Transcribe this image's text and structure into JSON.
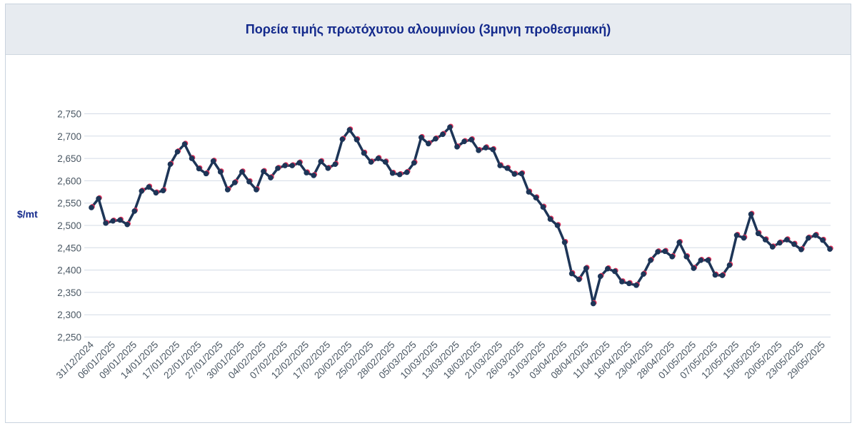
{
  "chart_data": {
    "type": "line",
    "title": "Πορεία τιμής πρωτόχυτου αλουμινίου (3μηνη προθεσμιακή)",
    "ylabel": "$/mt",
    "xlabel": "",
    "ylim": [
      2250,
      2750
    ],
    "yticks": [
      "2,250",
      "2,300",
      "2,350",
      "2,400",
      "2,450",
      "2,500",
      "2,550",
      "2,600",
      "2,650",
      "2,700",
      "2,750"
    ],
    "ytick_values": [
      2250,
      2300,
      2350,
      2400,
      2450,
      2500,
      2550,
      2600,
      2650,
      2700,
      2750
    ],
    "xtick_labels": [
      "31/12/2024",
      "06/01/2025",
      "09/01/2025",
      "14/01/2025",
      "17/01/2025",
      "22/01/2025",
      "27/01/2025",
      "30/01/2025",
      "04/02/2025",
      "07/02/2025",
      "12/02/2025",
      "17/02/2025",
      "20/02/2025",
      "25/02/2025",
      "28/02/2025",
      "05/03/2025",
      "10/03/2025",
      "13/03/2025",
      "18/03/2025",
      "21/03/2025",
      "26/03/2025",
      "31/03/2025",
      "03/04/2025",
      "08/04/2025",
      "11/04/2025",
      "16/04/2025",
      "23/04/2025",
      "28/04/2025",
      "01/05/2025",
      "07/05/2025",
      "12/05/2025",
      "15/05/2025",
      "20/05/2025",
      "23/05/2025",
      "29/05/2025"
    ],
    "grid": true,
    "legend": "none",
    "series": [
      {
        "color": "#1d3557",
        "marker_accent": "#e0315a",
        "values": [
          2540,
          2560,
          2505,
          2510,
          2512,
          2502,
          2532,
          2577,
          2586,
          2573,
          2578,
          2637,
          2665,
          2682,
          2650,
          2627,
          2616,
          2644,
          2620,
          2580,
          2596,
          2620,
          2598,
          2580,
          2621,
          2607,
          2628,
          2634,
          2634,
          2640,
          2618,
          2612,
          2643,
          2628,
          2637,
          2693,
          2714,
          2692,
          2662,
          2642,
          2650,
          2642,
          2617,
          2614,
          2619,
          2640,
          2697,
          2683,
          2694,
          2704,
          2720,
          2676,
          2688,
          2692,
          2668,
          2674,
          2670,
          2634,
          2628,
          2615,
          2616,
          2575,
          2562,
          2541,
          2514,
          2500,
          2462,
          2392,
          2379,
          2404,
          2325,
          2386,
          2403,
          2397,
          2374,
          2370,
          2366,
          2391,
          2422,
          2441,
          2442,
          2430,
          2462,
          2430,
          2404,
          2422,
          2422,
          2389,
          2388,
          2411,
          2478,
          2472,
          2525,
          2482,
          2468,
          2452,
          2461,
          2468,
          2458,
          2446,
          2472,
          2478,
          2467,
          2447
        ]
      }
    ]
  },
  "colors": {
    "title": "#142a8c",
    "grid": "#d3dbe6",
    "axis_text": "#4a5763",
    "title_bg": "#e7ebf0"
  }
}
